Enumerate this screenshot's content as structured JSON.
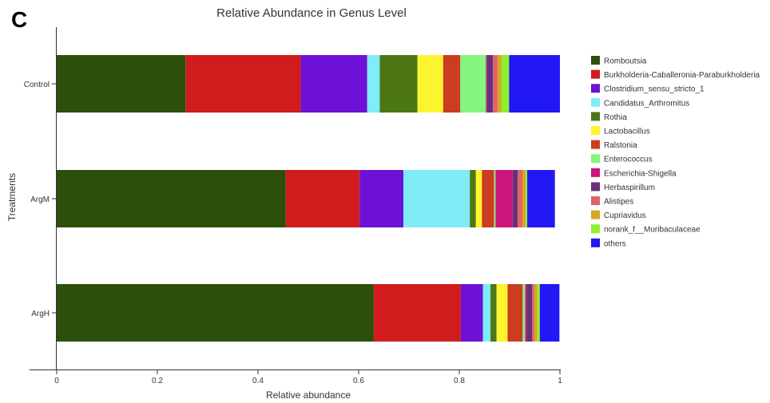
{
  "panel_label": "C",
  "chart_data": {
    "type": "bar",
    "orientation": "horizontal",
    "stacked": true,
    "title": "Relative Abundance in Genus Level",
    "xlabel": "Relative abundance",
    "ylabel": "Treatments",
    "xlim": [
      0,
      1
    ],
    "xticks": [
      "0",
      "0.2",
      "0.4",
      "0.6",
      "0.8",
      "1"
    ],
    "categories": [
      "Control",
      "ArgM",
      "ArgH"
    ],
    "legend_position": "right",
    "grid": false,
    "series": [
      {
        "name": "Romboutsia",
        "color": "#2d4f0c",
        "values": [
          0.256,
          0.455,
          0.63
        ]
      },
      {
        "name": "Burkholderia-Caballeronia-Paraburkholderia",
        "color": "#d01c1c",
        "values": [
          0.229,
          0.147,
          0.173
        ]
      },
      {
        "name": "Clostridium_sensu_stricto_1",
        "color": "#6d11d6",
        "values": [
          0.132,
          0.087,
          0.044
        ]
      },
      {
        "name": "Candidatus_Arthromitus",
        "color": "#7fecf8",
        "values": [
          0.025,
          0.132,
          0.015
        ]
      },
      {
        "name": "Rothia",
        "color": "#4c7714",
        "values": [
          0.075,
          0.012,
          0.012
        ]
      },
      {
        "name": "Lactobacillus",
        "color": "#fcf42c",
        "values": [
          0.051,
          0.012,
          0.022
        ]
      },
      {
        "name": "Ralstonia",
        "color": "#cc3c20",
        "values": [
          0.034,
          0.024,
          0.03
        ]
      },
      {
        "name": "Enterococcus",
        "color": "#84f57d",
        "values": [
          0.051,
          0.003,
          0.005
        ]
      },
      {
        "name": "Escherichia-Shigella",
        "color": "#cc147c",
        "values": [
          0.002,
          0.034,
          0.003
        ]
      },
      {
        "name": "Herbaspirillum",
        "color": "#6b2f7b",
        "values": [
          0.012,
          0.01,
          0.011
        ]
      },
      {
        "name": "Alistipes",
        "color": "#e06464",
        "values": [
          0.009,
          0.01,
          0.004
        ]
      },
      {
        "name": "Cupriavidus",
        "color": "#d4a822",
        "values": [
          0.008,
          0.006,
          0.006
        ]
      },
      {
        "name": "norank_f__Muribaculaceae",
        "color": "#8df22d",
        "values": [
          0.015,
          0.003,
          0.005
        ]
      },
      {
        "name": "others",
        "color": "#2217f5",
        "values": [
          0.101,
          0.055,
          0.039
        ]
      }
    ]
  }
}
